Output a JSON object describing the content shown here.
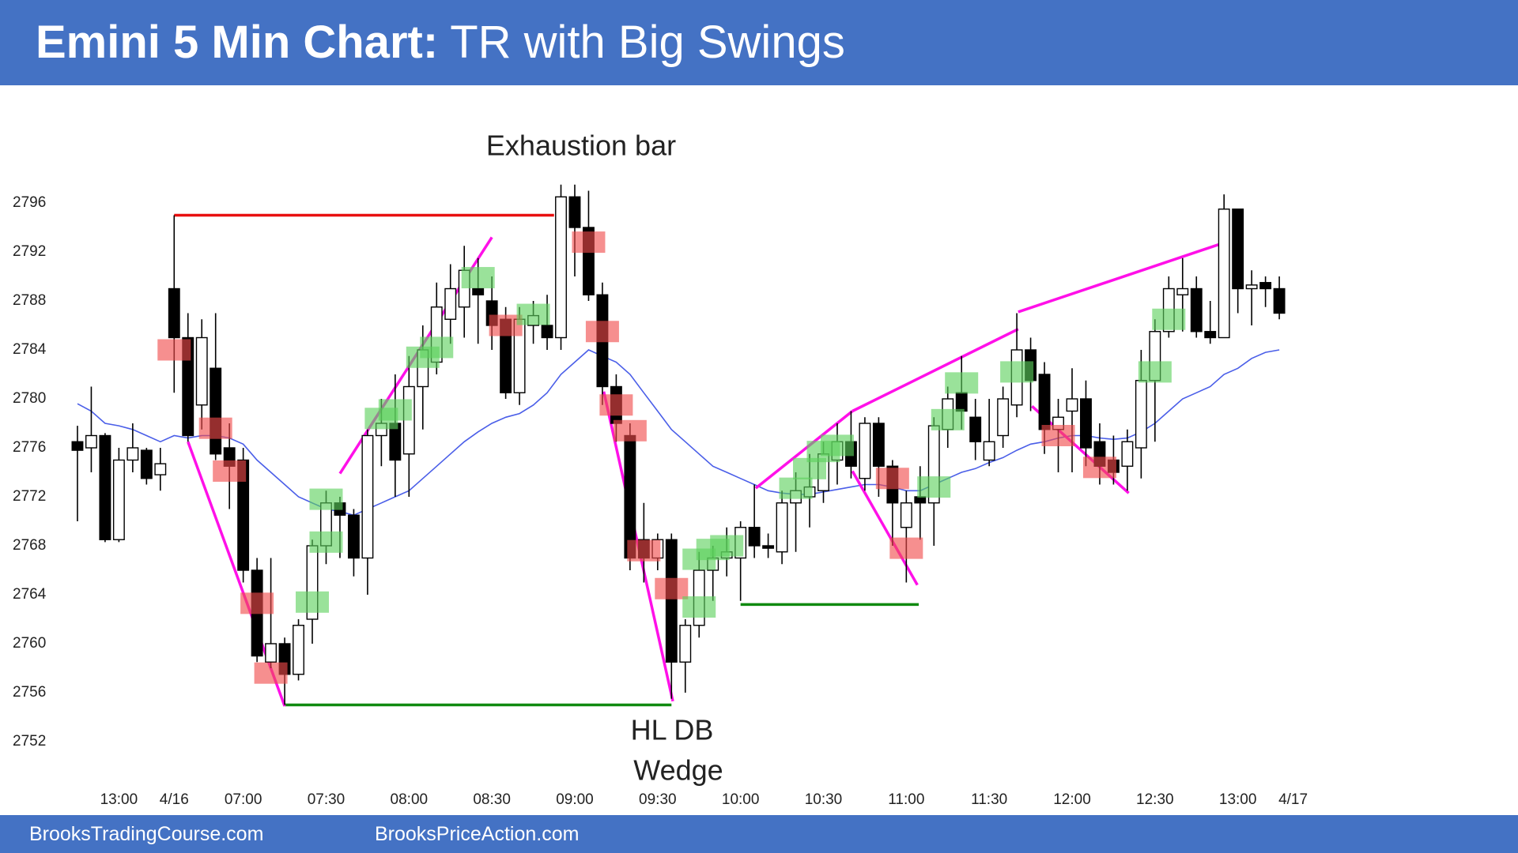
{
  "chart_data": {
    "type": "candlestick",
    "title": "Emini 5 Min Chart:",
    "subtitle": "TR with Big Swings",
    "footer_left": "BrooksTradingCourse.com",
    "footer_right": "BrooksPriceAction.com",
    "up_color": "#ffffff",
    "down_color": "#000000",
    "x": [
      0,
      1,
      2,
      3,
      4,
      5,
      6,
      7,
      8,
      9,
      10,
      11,
      12,
      13,
      14,
      15,
      16,
      17,
      18,
      19,
      20,
      21,
      22,
      23,
      24,
      25,
      26,
      27,
      28,
      29,
      30,
      31,
      32,
      33,
      34,
      35,
      36,
      37,
      38,
      39,
      40,
      41,
      42,
      43,
      44,
      45,
      46,
      47,
      48,
      49,
      50,
      51,
      52,
      53,
      54,
      55,
      56,
      57,
      58,
      59,
      60,
      61,
      62,
      63,
      64,
      65,
      66,
      67,
      68,
      69,
      70,
      71,
      72,
      73,
      74,
      75,
      76,
      77,
      78,
      79,
      80,
      81,
      82,
      83,
      84,
      85,
      86,
      87
    ],
    "open": [
      2776.5,
      2776,
      2777,
      2768.5,
      2775,
      2775.8,
      2773.8,
      2789,
      2785,
      2779.5,
      2782.5,
      2776,
      2775,
      2766,
      2758.5,
      2760,
      2757.5,
      2762,
      2768,
      2771.5,
      2770.5,
      2767,
      2777,
      2778,
      2775.5,
      2781,
      2783,
      2786.5,
      2787.5,
      2789,
      2788,
      2786.5,
      2780.5,
      2786,
      2786,
      2785,
      2796.5,
      2794,
      2788.5,
      2781,
      2777,
      2768.5,
      2767,
      2768.5,
      2758.5,
      2761.5,
      2766,
      2767,
      2767,
      2769.5,
      2768,
      2767.5,
      2771.5,
      2772,
      2772.5,
      2775,
      2776.5,
      2773.5,
      2778,
      2774.5,
      2769.5,
      2772,
      2771.5,
      2777.5,
      2780.5,
      2778.5,
      2775,
      2777,
      2779.5,
      2784,
      2782,
      2777.5,
      2779,
      2780,
      2776.5,
      2775,
      2774.5,
      2776,
      2781.5,
      2785.5,
      2788.5,
      2789,
      2785.5,
      2785,
      2795.5,
      2789,
      2789.5,
      2789
    ],
    "high": [
      2777.8,
      2781,
      2777.2,
      2776,
      2778,
      2776,
      2776,
      2795,
      2787,
      2786.5,
      2787,
      2778,
      2776,
      2767,
      2767,
      2760.5,
      2762,
      2768.5,
      2772.5,
      2772,
      2771,
      2777.5,
      2780,
      2782,
      2783.5,
      2786,
      2789.5,
      2791,
      2792.5,
      2791.5,
      2790,
      2787.5,
      2787.5,
      2788,
      2788.5,
      2797.5,
      2797.5,
      2797,
      2789.5,
      2782,
      2778,
      2771.5,
      2769,
      2769,
      2762,
      2767.5,
      2768,
      2769.5,
      2770,
      2773,
      2769,
      2772.5,
      2774,
      2775.5,
      2776.5,
      2778,
      2779,
      2778.5,
      2778.5,
      2775,
      2772.5,
      2774.5,
      2778.5,
      2781,
      2783.5,
      2780,
      2780,
      2781,
      2787,
      2785,
      2783,
      2780,
      2782.5,
      2781.5,
      2778,
      2777,
      2777.5,
      2784,
      2786.5,
      2790,
      2791.5,
      2790,
      2788,
      2796.7,
      2795.5,
      2790.5,
      2790,
      2790
    ],
    "low": [
      2770,
      2774,
      2768.3,
      2768.3,
      2774,
      2773,
      2772.5,
      2780.5,
      2776.5,
      2777.5,
      2775,
      2771,
      2765,
      2758.5,
      2758,
      2755,
      2757,
      2760,
      2766.5,
      2767,
      2765.5,
      2764,
      2774.5,
      2772,
      2772,
      2777.5,
      2782,
      2784.5,
      2785,
      2784.5,
      2784,
      2780,
      2779.5,
      2784.5,
      2784,
      2784,
      2790,
      2788,
      2779.5,
      2776.5,
      2766,
      2765,
      2766,
      2755.5,
      2756,
      2760.5,
      2763.5,
      2765.5,
      2763.5,
      2767,
      2767,
      2766.5,
      2767.5,
      2769.5,
      2771.5,
      2773,
      2773.5,
      2772.5,
      2772,
      2768,
      2765,
      2768.5,
      2768,
      2776,
      2777.5,
      2775,
      2774.5,
      2776,
      2778.5,
      2779,
      2775.5,
      2774,
      2774,
      2774.5,
      2773,
      2773,
      2772.5,
      2773.5,
      2776.5,
      2785,
      2785.5,
      2785,
      2784.5,
      2785,
      2787,
      2786,
      2787.5,
      2786.5
    ],
    "close": [
      2775.8,
      2777,
      2768.5,
      2775,
      2776,
      2773.5,
      2774.7,
      2785,
      2777,
      2785,
      2775.5,
      2774.5,
      2766,
      2759,
      2760,
      2757.5,
      2761.5,
      2768,
      2771.5,
      2770.5,
      2767,
      2777,
      2778,
      2775,
      2781,
      2784,
      2787.5,
      2789,
      2790.5,
      2788.5,
      2786,
      2780.5,
      2786.5,
      2786.8,
      2785,
      2796.5,
      2794,
      2788.5,
      2781,
      2778,
      2767,
      2767,
      2768.5,
      2758.5,
      2761.5,
      2766,
      2767,
      2767.5,
      2769.5,
      2768,
      2767.8,
      2771.5,
      2772.5,
      2772.8,
      2775.5,
      2776.5,
      2774.5,
      2778,
      2774.5,
      2771.5,
      2771.5,
      2771.5,
      2777.8,
      2780,
      2779,
      2776.5,
      2776.5,
      2780,
      2784,
      2781.5,
      2777.5,
      2778.5,
      2780,
      2776,
      2774.5,
      2774,
      2776.5,
      2781.5,
      2785.5,
      2789,
      2789,
      2785.5,
      2785,
      2795.5,
      2789,
      2789.3,
      2789,
      2787
    ],
    "ema": {
      "color": "#4a5ee8",
      "values": [
        2779.6,
        2779,
        2778,
        2777.8,
        2777.5,
        2777,
        2776.5,
        2777,
        2776.8,
        2777,
        2777,
        2776.8,
        2776.3,
        2775,
        2774,
        2773,
        2772,
        2771.5,
        2771,
        2770.8,
        2770.5,
        2771,
        2771.5,
        2772,
        2772.5,
        2773.5,
        2774.5,
        2775.5,
        2776.5,
        2777.3,
        2778,
        2778.5,
        2778.8,
        2779.5,
        2780.5,
        2782,
        2783,
        2784,
        2783.5,
        2783,
        2782,
        2780.5,
        2779,
        2777.5,
        2776.5,
        2775.5,
        2774.5,
        2774,
        2773.5,
        2773,
        2772.5,
        2772.3,
        2772.2,
        2772.2,
        2772.4,
        2772.6,
        2772.8,
        2773,
        2773,
        2772.8,
        2772.5,
        2772.5,
        2773,
        2773.5,
        2774,
        2774.3,
        2774.8,
        2775.2,
        2775.8,
        2776.3,
        2776.5,
        2776.8,
        2777,
        2777,
        2776.8,
        2776.7,
        2776.8,
        2777.3,
        2778,
        2779,
        2780,
        2780.5,
        2781,
        2782,
        2782.5,
        2783.3,
        2783.8,
        2784
      ]
    },
    "xlim": [
      -1,
      90
    ],
    "ylim": [
      2748,
      2800
    ],
    "yticks": [
      2752,
      2756,
      2760,
      2764,
      2768,
      2772,
      2776,
      2780,
      2784,
      2788,
      2792,
      2796
    ],
    "xticks": [
      {
        "value": 3,
        "label": "13:00"
      },
      {
        "value": 7,
        "label": "4/16"
      },
      {
        "value": 12,
        "label": "07:00"
      },
      {
        "value": 18,
        "label": "07:30"
      },
      {
        "value": 24,
        "label": "08:00"
      },
      {
        "value": 30,
        "label": "08:30"
      },
      {
        "value": 36,
        "label": "09:00"
      },
      {
        "value": 42,
        "label": "09:30"
      },
      {
        "value": 48,
        "label": "10:00"
      },
      {
        "value": 54,
        "label": "10:30"
      },
      {
        "value": 60,
        "label": "11:00"
      },
      {
        "value": 66,
        "label": "11:30"
      },
      {
        "value": 72,
        "label": "12:00"
      },
      {
        "value": 78,
        "label": "12:30"
      },
      {
        "value": 84,
        "label": "13:00"
      },
      {
        "value": 88,
        "label": "4/17"
      }
    ],
    "grid": false,
    "lines": [
      {
        "color": "#e81010",
        "x": [
          7,
          34.5
        ],
        "y": [
          2795,
          2795
        ]
      },
      {
        "color": "#108a10",
        "x": [
          15,
          43
        ],
        "y": [
          2755,
          2755
        ]
      },
      {
        "color": "#108a10",
        "x": [
          48,
          60.9
        ],
        "y": [
          2763.2,
          2763.2
        ]
      },
      {
        "color": "#ff10e8",
        "x": [
          8,
          15
        ],
        "y": [
          2776.5,
          2754.9
        ]
      },
      {
        "color": "#ff10e8",
        "x": [
          19,
          30
        ],
        "y": [
          2773.9,
          2793.2
        ]
      },
      {
        "color": "#ff10e8",
        "x": [
          38.1,
          43.1
        ],
        "y": [
          2780.6,
          2755.3
        ]
      },
      {
        "color": "#ff10e8",
        "x": [
          49.1,
          56.1
        ],
        "y": [
          2772.7,
          2779
        ]
      },
      {
        "color": "#ff10e8",
        "x": [
          56.1,
          68.1
        ],
        "y": [
          2779,
          2785.7
        ]
      },
      {
        "color": "#ff10e8",
        "x": [
          56.1,
          60.8
        ],
        "y": [
          2774.1,
          2764.8
        ]
      },
      {
        "color": "#ff10e8",
        "x": [
          68.1,
          82.6
        ],
        "y": [
          2787.1,
          2792.6
        ]
      },
      {
        "color": "#ff10e8",
        "x": [
          69.1,
          76.1
        ],
        "y": [
          2779.4,
          2772.3
        ]
      }
    ],
    "highlights": [
      {
        "color": "#f04a4a",
        "points": [
          {
            "x": 7,
            "y": 2784
          },
          {
            "x": 10,
            "y": 2777.6
          },
          {
            "x": 11,
            "y": 2774.1
          },
          {
            "x": 13,
            "y": 2763.3
          },
          {
            "x": 14,
            "y": 2757.6
          },
          {
            "x": 31,
            "y": 2786
          },
          {
            "x": 37,
            "y": 2792.8
          },
          {
            "x": 38,
            "y": 2785.5
          },
          {
            "x": 39,
            "y": 2779.5
          },
          {
            "x": 40,
            "y": 2777.4
          },
          {
            "x": 41,
            "y": 2767.6
          },
          {
            "x": 43,
            "y": 2764.5
          },
          {
            "x": 59,
            "y": 2773.5
          },
          {
            "x": 60,
            "y": 2767.8
          },
          {
            "x": 71,
            "y": 2777
          },
          {
            "x": 74,
            "y": 2774.4
          }
        ]
      },
      {
        "color": "#5cd05c",
        "points": [
          {
            "x": 18,
            "y": 2771.8
          },
          {
            "x": 18,
            "y": 2768.3
          },
          {
            "x": 17,
            "y": 2763.4
          },
          {
            "x": 22,
            "y": 2778.4
          },
          {
            "x": 23,
            "y": 2779.1
          },
          {
            "x": 25,
            "y": 2783.4
          },
          {
            "x": 26,
            "y": 2784.2
          },
          {
            "x": 29,
            "y": 2789.9
          },
          {
            "x": 33,
            "y": 2786.9
          },
          {
            "x": 45,
            "y": 2763
          },
          {
            "x": 45,
            "y": 2766.9
          },
          {
            "x": 46,
            "y": 2767.7
          },
          {
            "x": 47,
            "y": 2768
          },
          {
            "x": 52,
            "y": 2772.7
          },
          {
            "x": 53,
            "y": 2774.3
          },
          {
            "x": 54,
            "y": 2775.7
          },
          {
            "x": 55,
            "y": 2776.2
          },
          {
            "x": 62,
            "y": 2772.8
          },
          {
            "x": 63,
            "y": 2778.3
          },
          {
            "x": 64,
            "y": 2781.3
          },
          {
            "x": 68,
            "y": 2782.2
          },
          {
            "x": 78,
            "y": 2782.2
          },
          {
            "x": 79,
            "y": 2786.5
          }
        ]
      }
    ],
    "annotations": [
      {
        "text": "Exhaustion bar",
        "color": "#c55a11"
      },
      {
        "text": "HL DB",
        "color": "#c55a11"
      },
      {
        "text": "Wedge",
        "color": "#ff00ff"
      }
    ]
  }
}
